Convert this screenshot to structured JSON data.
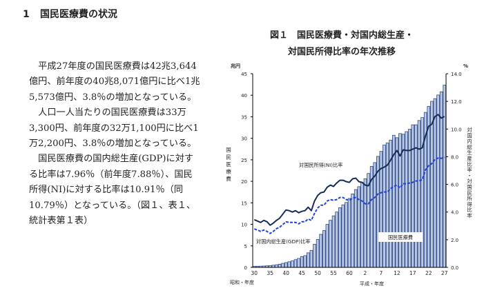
{
  "heading": {
    "number": "1",
    "title": "国民医療費の状況"
  },
  "paragraph_lines": [
    "　平成27年度の国民医療費は42兆3,644",
    "億円、前年度の40兆8,071億円に比べ1兆",
    "5,573億円、3.8％の増加となっている。",
    "　人口一人当たりの国民医療費は33万",
    "3,300円、前年度の32万1,100円に比べ1",
    "万2,200円、3.8％の増加となっている。",
    "　国民医療費の国内総生産(GDP)に対す",
    "る比率は7.96％（前年度7.88％）、国民",
    "所得(NI)に対する比率は10.91％（同",
    "10.79％）となっている。（図１、表１、",
    "統計表第１表）"
  ],
  "chart_data": {
    "type": "bar+line",
    "title_line1": "図１　国民医療費・対国内総生産・",
    "title_line2": "対国民所得比率の年次推移",
    "left_unit": "兆円",
    "right_unit": "%",
    "ylabel": "国民医療費",
    "y2label": "対国内総生産比率・対国民所得比率",
    "xlabel_showa": "昭和・年度",
    "xlabel_heisei": "平成・年度",
    "ylim": [
      0,
      45
    ],
    "y2lim": [
      0,
      14
    ],
    "yticks": [
      "0",
      "5",
      "10",
      "15",
      "20",
      "25",
      "30",
      "35",
      "40",
      "45"
    ],
    "y2ticks": [
      "0.0",
      "2.0",
      "4.0",
      "6.0",
      "8.0",
      "10.0",
      "12.0",
      "14.0"
    ],
    "xtick_labels": [
      "30",
      "35",
      "40",
      "45",
      "50",
      "55",
      "60",
      "2",
      "7",
      "12",
      "17",
      "22",
      "27"
    ],
    "xtick_index": [
      0,
      5,
      10,
      15,
      20,
      25,
      30,
      35,
      40,
      45,
      50,
      55,
      60
    ],
    "years": [
      "S30",
      "S31",
      "S32",
      "S33",
      "S34",
      "S35",
      "S36",
      "S37",
      "S38",
      "S39",
      "S40",
      "S41",
      "S42",
      "S43",
      "S44",
      "S45",
      "S46",
      "S47",
      "S48",
      "S49",
      "S50",
      "S51",
      "S52",
      "S53",
      "S54",
      "S55",
      "S56",
      "S57",
      "S58",
      "S59",
      "S60",
      "S61",
      "S62",
      "S63",
      "H1",
      "H2",
      "H3",
      "H4",
      "H5",
      "H6",
      "H7",
      "H8",
      "H9",
      "H10",
      "H11",
      "H12",
      "H13",
      "H14",
      "H15",
      "H16",
      "H17",
      "H18",
      "H19",
      "H20",
      "H21",
      "H22",
      "H23",
      "H24",
      "H25",
      "H26",
      "H27"
    ],
    "series": [
      {
        "name": "国民医療費",
        "type": "bar",
        "color": "#b9c9e6",
        "edge": "#2c467f",
        "values": [
          0.24,
          0.26,
          0.29,
          0.32,
          0.36,
          0.41,
          0.51,
          0.61,
          0.74,
          0.94,
          1.12,
          1.31,
          1.52,
          1.8,
          2.08,
          2.5,
          2.73,
          3.39,
          3.95,
          5.38,
          6.48,
          7.68,
          8.56,
          10.0,
          10.95,
          11.98,
          12.87,
          13.86,
          14.54,
          15.09,
          16.02,
          17.07,
          18.08,
          18.76,
          19.73,
          20.61,
          21.83,
          23.48,
          24.36,
          25.79,
          26.96,
          28.45,
          28.91,
          29.58,
          30.7,
          30.14,
          31.1,
          30.95,
          31.54,
          32.11,
          33.13,
          33.13,
          34.14,
          34.81,
          36.01,
          37.42,
          38.59,
          39.21,
          40.06,
          40.81,
          42.36
        ]
      },
      {
        "name": "対国民所得(NI)比率",
        "type": "line",
        "color": "#15295a",
        "values": [
          3.45,
          3.35,
          3.25,
          3.4,
          3.3,
          3.05,
          3.2,
          3.4,
          3.55,
          3.85,
          4.15,
          4.1,
          4.0,
          4.1,
          3.95,
          4.05,
          4.1,
          4.35,
          4.1,
          4.8,
          5.2,
          5.4,
          5.45,
          5.8,
          5.95,
          5.85,
          6.1,
          6.3,
          6.3,
          6.2,
          6.15,
          6.4,
          6.45,
          6.2,
          6.15,
          5.95,
          5.9,
          6.35,
          6.6,
          6.95,
          7.15,
          7.25,
          7.4,
          7.75,
          8.15,
          8.45,
          8.05,
          8.5,
          8.45,
          8.45,
          8.55,
          8.65,
          8.55,
          8.65,
          9.5,
          10.2,
          10.35,
          10.9,
          11.05,
          10.79,
          10.91
        ]
      },
      {
        "name": "対国内総生産(GDP)比率",
        "type": "line",
        "dashed": true,
        "color": "#1f3fdc",
        "values": [
          2.78,
          2.7,
          2.6,
          2.7,
          2.6,
          2.45,
          2.6,
          2.8,
          2.9,
          3.1,
          3.3,
          3.25,
          3.25,
          3.25,
          3.15,
          3.3,
          3.3,
          3.5,
          3.4,
          3.9,
          4.3,
          4.5,
          4.5,
          4.8,
          4.9,
          4.85,
          4.9,
          5.05,
          5.05,
          4.9,
          4.85,
          5.0,
          5.05,
          4.9,
          4.8,
          4.6,
          4.6,
          4.9,
          5.05,
          5.3,
          5.4,
          5.45,
          5.45,
          5.7,
          5.85,
          5.95,
          5.75,
          6.05,
          6.05,
          6.1,
          6.15,
          6.25,
          6.25,
          6.35,
          7.05,
          7.35,
          7.5,
          7.8,
          7.9,
          7.88,
          7.96
        ]
      }
    ],
    "annotations": {
      "ni": "対国民所得(NI)比率",
      "gdp": "対国内総生産(GDP)比率",
      "bar": "国民医療費"
    }
  }
}
